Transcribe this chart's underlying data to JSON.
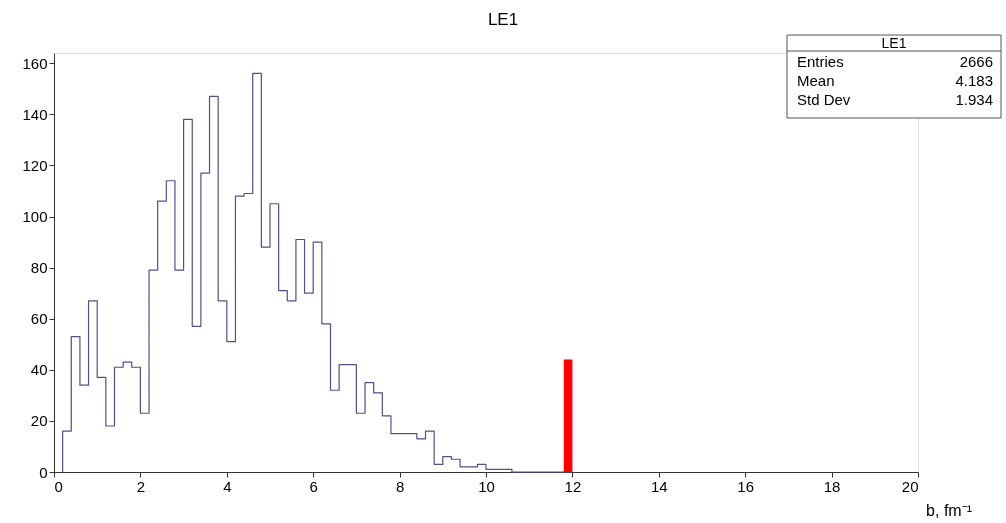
{
  "chart_data": {
    "type": "histogram",
    "title": "LE1",
    "xlabel": "b,  fm⁻¹",
    "bins": [
      0.2,
      0.4,
      0.6,
      0.8,
      1.0,
      1.2,
      1.4,
      1.6,
      1.8,
      2.0,
      2.2,
      2.4,
      2.6,
      2.8,
      3.0,
      3.2,
      3.4,
      3.6,
      3.8,
      4.0,
      4.2,
      4.4,
      4.6,
      4.8,
      5.0,
      5.2,
      5.4,
      5.6,
      5.8,
      6.0,
      6.2,
      6.4,
      6.6,
      6.8,
      7.0,
      7.2,
      7.4,
      7.6,
      7.8,
      8.0,
      8.2,
      8.4,
      8.6,
      8.8,
      9.0,
      9.2,
      9.4,
      9.6,
      9.8,
      10.0,
      10.2,
      10.4,
      10.6,
      10.8,
      11.0,
      11.2,
      11.4,
      11.6,
      11.8,
      12.0
    ],
    "series": [
      {
        "color": "#50508f",
        "values": [
          16,
          53,
          34,
          67,
          37,
          18,
          41,
          43,
          41,
          23,
          79,
          106,
          114,
          79,
          138,
          57,
          117,
          147,
          67,
          51,
          108,
          109,
          156,
          88,
          105,
          71,
          67,
          91,
          70,
          90,
          58,
          32,
          42,
          42,
          23,
          35,
          31,
          22,
          15,
          15,
          15,
          13,
          16,
          3,
          6,
          5,
          2,
          2,
          3,
          1,
          1,
          1,
          0,
          0,
          0,
          0,
          0,
          0,
          0
        ]
      },
      {
        "type": "bar",
        "color": "#ff0000",
        "x": [
          11.9
        ],
        "values": [
          44
        ]
      }
    ],
    "xlim": [
      0,
      20
    ],
    "xticks": [
      0,
      2,
      4,
      6,
      8,
      10,
      12,
      14,
      16,
      18,
      20
    ],
    "ylim": [
      0,
      164
    ],
    "yticks": [
      0,
      20,
      40,
      60,
      80,
      100,
      120,
      140,
      160
    ],
    "grid": false,
    "annotations": [
      "LE1",
      "Entries",
      "2666",
      "Mean",
      "4.183",
      "Std Dev",
      "1.934"
    ]
  }
}
